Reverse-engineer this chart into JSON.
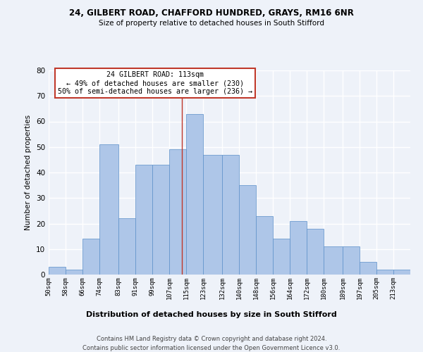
{
  "title1": "24, GILBERT ROAD, CHAFFORD HUNDRED, GRAYS, RM16 6NR",
  "title2": "Size of property relative to detached houses in South Stifford",
  "xlabel": "Distribution of detached houses by size in South Stifford",
  "ylabel": "Number of detached properties",
  "bin_labels": [
    "50sqm",
    "58sqm",
    "66sqm",
    "74sqm",
    "83sqm",
    "91sqm",
    "99sqm",
    "107sqm",
    "115sqm",
    "123sqm",
    "132sqm",
    "140sqm",
    "148sqm",
    "156sqm",
    "164sqm",
    "172sqm",
    "180sqm",
    "189sqm",
    "197sqm",
    "205sqm",
    "213sqm"
  ],
  "bin_edges": [
    50,
    58,
    66,
    74,
    83,
    91,
    99,
    107,
    115,
    123,
    132,
    140,
    148,
    156,
    164,
    172,
    180,
    189,
    197,
    205,
    213,
    221
  ],
  "bar_heights": [
    3,
    2,
    14,
    51,
    22,
    43,
    43,
    49,
    63,
    47,
    47,
    35,
    23,
    14,
    21,
    18,
    11,
    11,
    5,
    2,
    2
  ],
  "bar_color": "#aec6e8",
  "bar_edge_color": "#5b8fc9",
  "property_size": 113,
  "vline_color": "#c0392b",
  "annotation_text": "24 GILBERT ROAD: 113sqm\n← 49% of detached houses are smaller (230)\n50% of semi-detached houses are larger (236) →",
  "annotation_box_color": "#ffffff",
  "annotation_box_edge_color": "#c0392b",
  "ylim": [
    0,
    80
  ],
  "yticks": [
    0,
    10,
    20,
    30,
    40,
    50,
    60,
    70,
    80
  ],
  "footer1": "Contains HM Land Registry data © Crown copyright and database right 2024.",
  "footer2": "Contains public sector information licensed under the Open Government Licence v3.0.",
  "background_color": "#eef2f9",
  "grid_color": "#ffffff"
}
